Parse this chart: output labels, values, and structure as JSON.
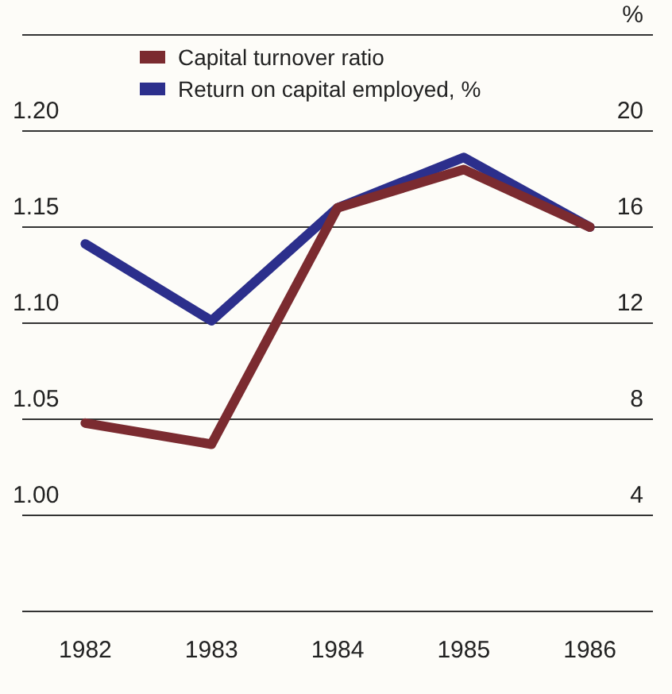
{
  "chart_data": {
    "type": "line",
    "categories": [
      "1982",
      "1983",
      "1984",
      "1985",
      "1986"
    ],
    "series": [
      {
        "name": "Capital turnover ratio",
        "color": "#7b2b30",
        "values": [
          1.048,
          1.037,
          1.16,
          1.18,
          1.15
        ]
      },
      {
        "name": "Return on capital employed, %",
        "color": "#2c2f8c",
        "axis": "y2",
        "values": [
          15.3,
          12.1,
          16.8,
          18.9,
          16
        ]
      }
    ],
    "ylim": [
      0.95,
      1.25
    ],
    "yticks": [
      {
        "value": 0.95,
        "label": null
      },
      {
        "value": 1,
        "label": "1.00"
      },
      {
        "value": 1.05,
        "label": "1.05"
      },
      {
        "value": 1.1,
        "label": "1.10"
      },
      {
        "value": 1.15,
        "label": "1.15"
      },
      {
        "value": 1.2,
        "label": "1.20"
      },
      {
        "value": 1.25,
        "label": null
      }
    ],
    "y2lim": [
      0,
      24
    ],
    "y2ticks": [
      {
        "value": 0,
        "label": null
      },
      4,
      8,
      12,
      16,
      20,
      {
        "value": 24,
        "label": "%"
      }
    ],
    "grid": "y",
    "legend": "top left",
    "marker": "none",
    "line_style": "solid"
  }
}
